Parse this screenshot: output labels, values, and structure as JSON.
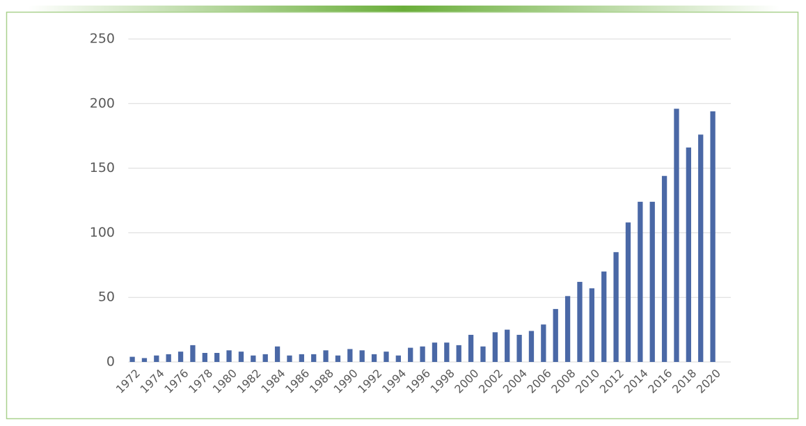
{
  "chart_data": {
    "type": "bar",
    "categories": [
      "1972",
      null,
      "1974",
      null,
      "1976",
      null,
      "1978",
      null,
      "1980",
      null,
      "1982",
      null,
      "1984",
      null,
      "1986",
      null,
      "1988",
      null,
      "1990",
      null,
      "1992",
      null,
      "1994",
      null,
      "1996",
      null,
      "1998",
      null,
      "2000",
      null,
      "2002",
      null,
      "2004",
      null,
      "2006",
      null,
      "2008",
      null,
      "2010",
      null,
      "2012",
      null,
      "2014",
      null,
      "2016",
      null,
      "2018",
      null,
      "2020"
    ],
    "values": [
      4,
      3,
      5,
      6,
      8,
      13,
      7,
      7,
      9,
      8,
      5,
      6,
      12,
      5,
      6,
      6,
      9,
      5,
      10,
      9,
      6,
      8,
      5,
      11,
      12,
      15,
      15,
      13,
      21,
      12,
      23,
      25,
      21,
      24,
      29,
      41,
      51,
      62,
      57,
      70,
      85,
      108,
      124,
      124,
      144,
      196,
      166,
      176,
      194
    ],
    "color": "#4a68a6",
    "ylim": [
      0,
      250
    ],
    "yticks": [
      0,
      50,
      100,
      150,
      200,
      250
    ],
    "grid": true
  }
}
